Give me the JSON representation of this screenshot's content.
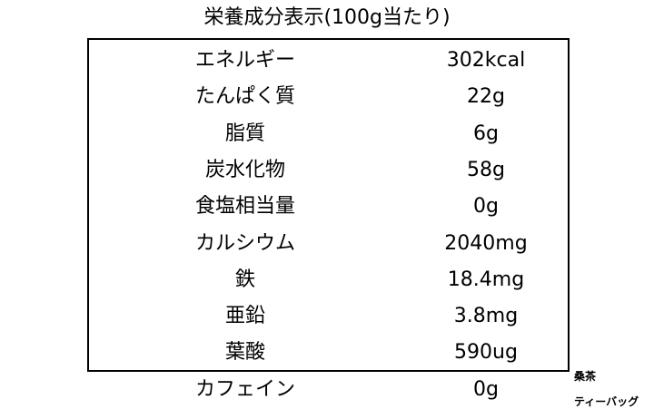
{
  "header": {
    "title": "栄養成分表示(100g当たり)"
  },
  "table": {
    "rows": [
      [
        "エネルギー",
        "302kcal"
      ],
      [
        "たんぱく質",
        "22g"
      ],
      [
        "脂質",
        "6g"
      ],
      [
        "炭水化物",
        "58g"
      ],
      [
        "食塩相当量",
        "0g"
      ],
      [
        "カルシウム",
        "2040mg"
      ],
      [
        "鉄",
        "18.4mg"
      ],
      [
        "亜鉛",
        "3.8mg"
      ],
      [
        "葉酸",
        "590ug"
      ],
      [
        "カフェイン",
        "0g"
      ]
    ]
  },
  "note": {
    "product": "桑茶",
    "form": "ティーバッグ"
  }
}
